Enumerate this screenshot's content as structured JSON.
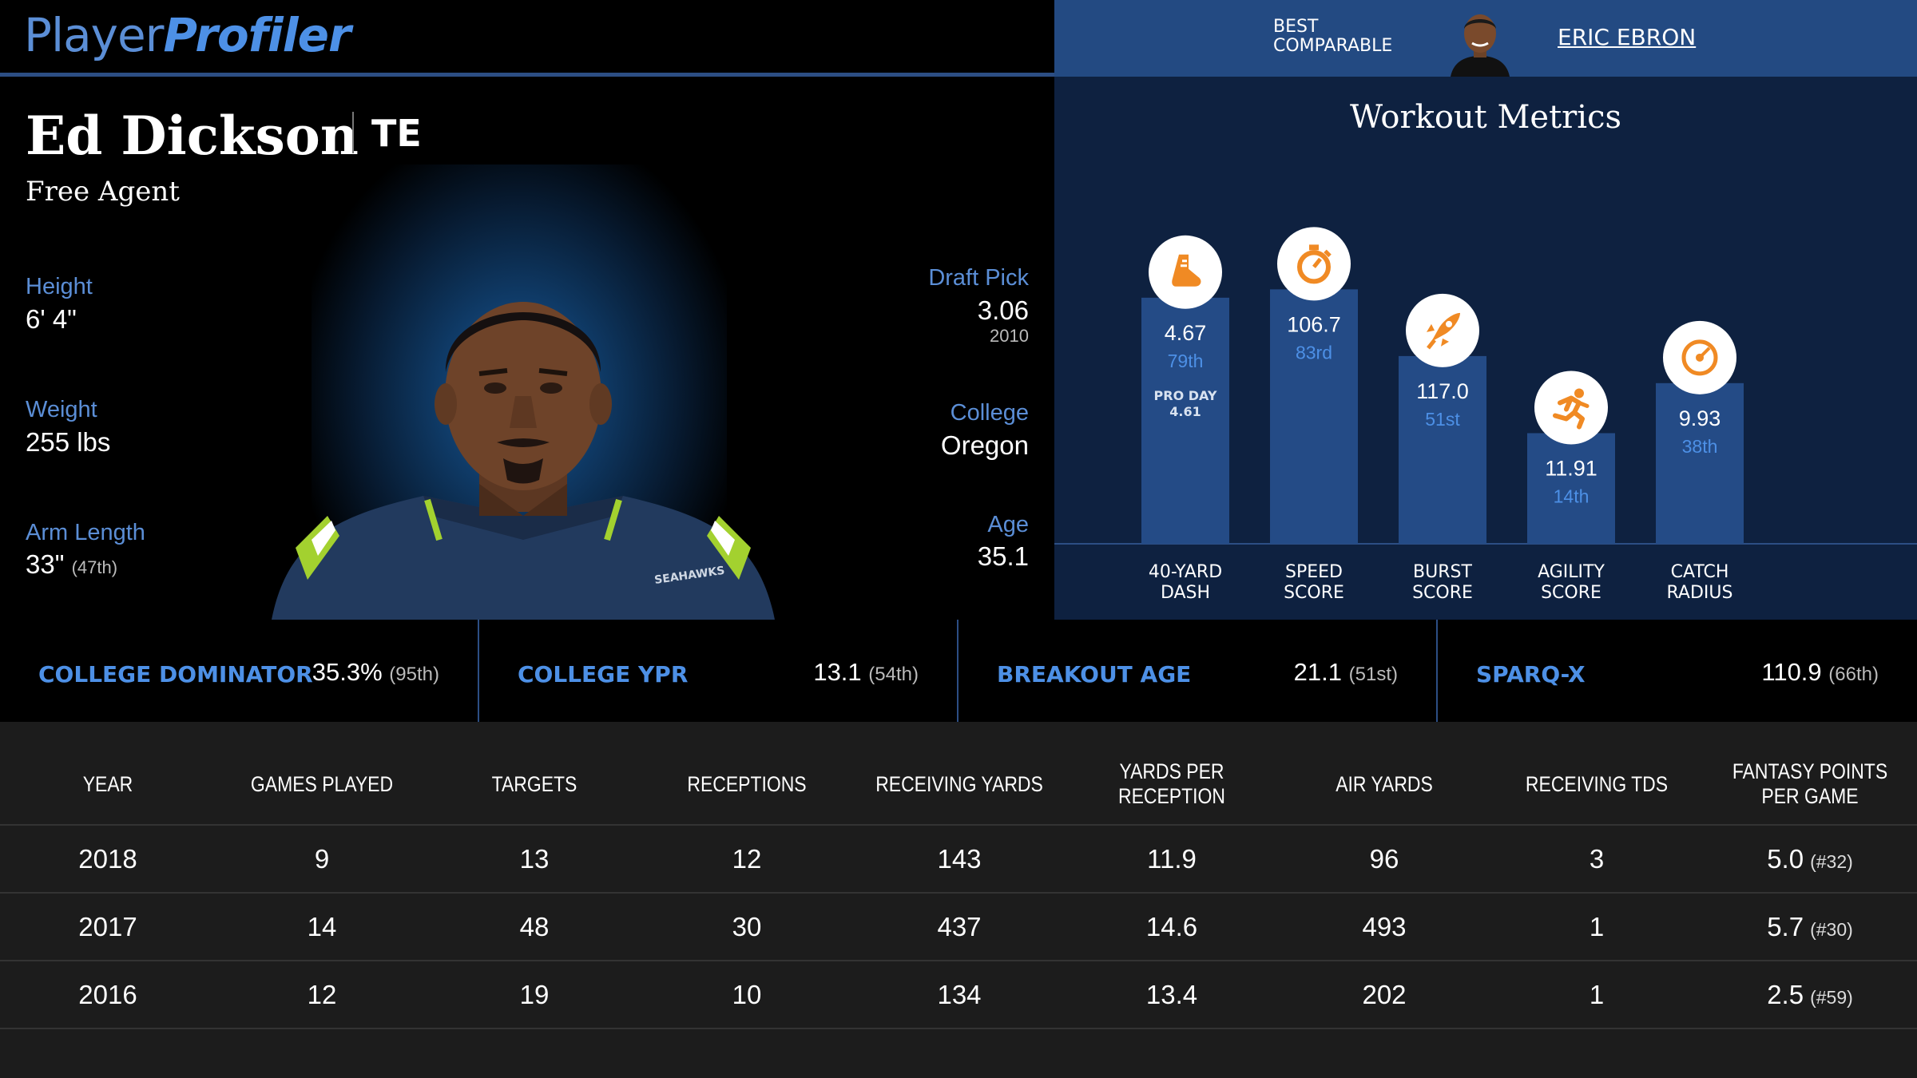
{
  "brand": {
    "part1": "Player",
    "part2": "Profiler"
  },
  "best_comparable": {
    "label_line1": "BEST",
    "label_line2": "COMPARABLE",
    "name": "ERIC EBRON"
  },
  "player": {
    "name": "Ed Dickson",
    "position": "TE",
    "team": "Free Agent",
    "jersey_text": "SEAHAWKS",
    "height": {
      "label": "Height",
      "value": "6' 4\""
    },
    "weight": {
      "label": "Weight",
      "value": "255 lbs"
    },
    "arm_length": {
      "label": "Arm Length",
      "value": "33\"",
      "rank": "(47th)"
    },
    "draft_pick": {
      "label": "Draft Pick",
      "value": "3.06",
      "year": "2010"
    },
    "college": {
      "label": "College",
      "value": "Oregon"
    },
    "age": {
      "label": "Age",
      "value": "35.1"
    }
  },
  "workout": {
    "title": "Workout Metrics",
    "metrics": [
      {
        "line1": "40-YARD",
        "line2": "DASH",
        "value": "4.67",
        "pct": "79th",
        "note_line1": "PRO DAY",
        "note_line2": "4.61",
        "percentile": 79,
        "icon": "shoe-icon"
      },
      {
        "line1": "SPEED",
        "line2": "SCORE",
        "value": "106.7",
        "pct": "83rd",
        "percentile": 83,
        "icon": "stopwatch-icon"
      },
      {
        "line1": "BURST",
        "line2": "SCORE",
        "value": "117.0",
        "pct": "51st",
        "percentile": 51,
        "icon": "rocket-icon"
      },
      {
        "line1": "AGILITY",
        "line2": "SCORE",
        "value": "11.91",
        "pct": "14th",
        "percentile": 14,
        "icon": "runner-icon"
      },
      {
        "line1": "CATCH",
        "line2": "RADIUS",
        "value": "9.93",
        "pct": "38th",
        "percentile": 38,
        "icon": "target-icon"
      }
    ]
  },
  "college_metrics": [
    {
      "label": "COLLEGE DOMINATOR",
      "value": "35.3%",
      "rank": "(95th)"
    },
    {
      "label": "COLLEGE YPR",
      "value": "13.1",
      "rank": "(54th)"
    },
    {
      "label": "BREAKOUT AGE",
      "value": "21.1",
      "rank": "(51st)"
    },
    {
      "label": "SPARQ-X",
      "value": "110.9",
      "rank": "(66th)"
    }
  ],
  "stats_table": {
    "headers": [
      "YEAR",
      "GAMES PLAYED",
      "TARGETS",
      "RECEPTIONS",
      "RECEIVING YARDS",
      "YARDS PER RECEPTION",
      "AIR YARDS",
      "RECEIVING TDS",
      "FANTASY POINTS PER GAME"
    ],
    "rows": [
      {
        "year": "2018",
        "games": "9",
        "targets": "13",
        "receptions": "12",
        "yards": "143",
        "ypr": "11.9",
        "air_yards": "96",
        "tds": "3",
        "fppg": "5.0",
        "fppg_rank": "(#32)"
      },
      {
        "year": "2017",
        "games": "14",
        "targets": "48",
        "receptions": "30",
        "yards": "437",
        "ypr": "14.6",
        "air_yards": "493",
        "tds": "1",
        "fppg": "5.7",
        "fppg_rank": "(#30)"
      },
      {
        "year": "2016",
        "games": "12",
        "targets": "19",
        "receptions": "10",
        "yards": "134",
        "ypr": "13.4",
        "air_yards": "202",
        "tds": "1",
        "fppg": "2.5",
        "fppg_rank": "(#59)"
      }
    ]
  },
  "colors": {
    "accent": "#4d90e6",
    "bar": "#244b86",
    "icon": "#f08a24",
    "header_bg": "#234a82",
    "panel_bg": "#0e2140"
  }
}
